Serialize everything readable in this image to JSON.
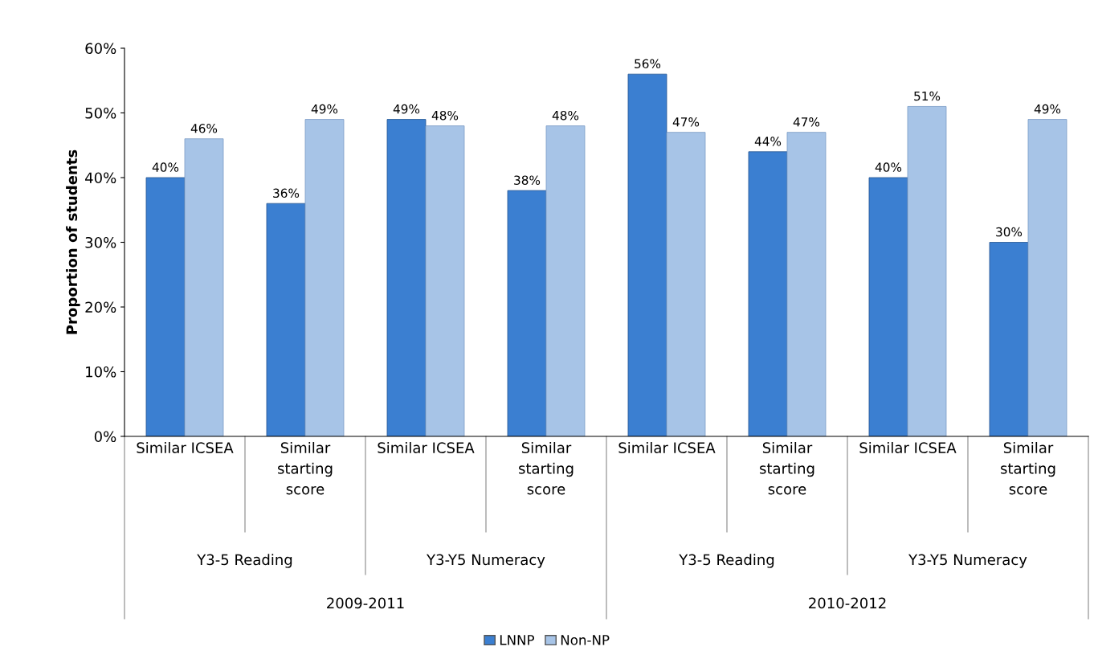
{
  "chart_data": {
    "type": "bar",
    "ylabel": "Proportion of students",
    "categories": [
      "Similar ICSEA",
      "Similar\nstarting\nscore",
      "Similar ICSEA",
      "Similar\nstarting\nscore",
      "Similar ICSEA",
      "Similar\nstarting\nscore",
      "Similar ICSEA",
      "Similar\nstarting\nscore"
    ],
    "series": [
      {
        "name": "LNNP",
        "color": "#3b7fd1",
        "values": [
          40,
          36,
          49,
          38,
          56,
          44,
          40,
          30
        ],
        "value_labels": [
          "40%",
          "36%",
          "49%",
          "38%",
          "56%",
          "44%",
          "40%",
          "30%"
        ]
      },
      {
        "name": "Non-NP",
        "color": "#a7c4e7",
        "values": [
          46,
          49,
          48,
          48,
          47,
          47,
          51,
          49
        ],
        "value_labels": [
          "46%",
          "49%",
          "48%",
          "48%",
          "47%",
          "47%",
          "51%",
          "49%"
        ]
      }
    ],
    "annotations": [
      "Y3-5 Reading",
      "Y3-Y5 Numeracy",
      "Y3-5 Reading",
      "Y3-Y5 Numeracy",
      "2009-2011",
      "2010-2012"
    ],
    "ylim": [
      0,
      60
    ],
    "yticks": [
      {
        "value": 0,
        "label": "0%"
      },
      {
        "value": 10,
        "label": "10%"
      },
      {
        "value": 20,
        "label": "20%"
      },
      {
        "value": 30,
        "label": "30%"
      },
      {
        "value": 40,
        "label": "40%"
      },
      {
        "value": 50,
        "label": "50%"
      },
      {
        "value": 60,
        "label": "60%"
      }
    ],
    "grid": false,
    "legend": "bottom"
  }
}
